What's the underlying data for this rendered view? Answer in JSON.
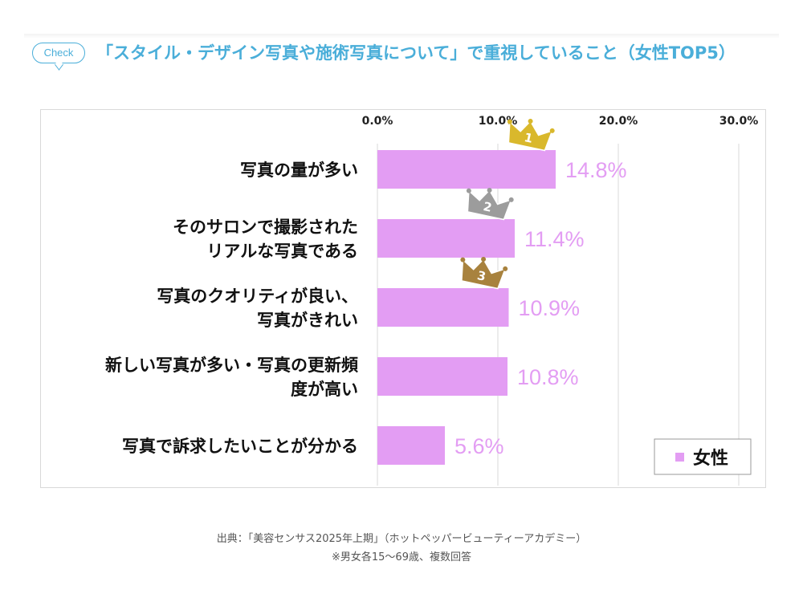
{
  "header": {
    "badge": "Check",
    "title": "「スタイル・デザイン写真や施術写真について」で重視していること（女性TOP5）"
  },
  "chart_data": {
    "type": "bar",
    "orientation": "horizontal",
    "x_ticks": [
      "0.0%",
      "10.0%",
      "20.0%",
      "30.0%"
    ],
    "xlim": [
      0,
      30
    ],
    "categories": [
      [
        "写真の量が多い"
      ],
      [
        "そのサロンで撮影された",
        "リアルな写真である"
      ],
      [
        "写真のクオリティが良い、",
        "写真がきれい"
      ],
      [
        "新しい写真が多い・写真の更新頻",
        "度が高い"
      ],
      [
        "写真で訴求したいことが分かる"
      ]
    ],
    "series": [
      {
        "name": "女性",
        "values": [
          14.8,
          11.4,
          10.9,
          10.8,
          5.6
        ],
        "labels": [
          "14.8%",
          "11.4%",
          "10.9%",
          "10.8%",
          "5.6%"
        ],
        "color": "#e39df3"
      }
    ],
    "rank_badges": [
      {
        "rank": "1",
        "color": "#d9b82c"
      },
      {
        "rank": "2",
        "color": "#9c9c9c"
      },
      {
        "rank": "3",
        "color": "#a8823e"
      }
    ],
    "legend": "bottom-right",
    "grid": true
  },
  "footer": {
    "source": "出典：「美容センサス2025年上期」（ホットペッパービューティーアカデミー）",
    "note": "※男女各15～69歳、複数回答"
  }
}
